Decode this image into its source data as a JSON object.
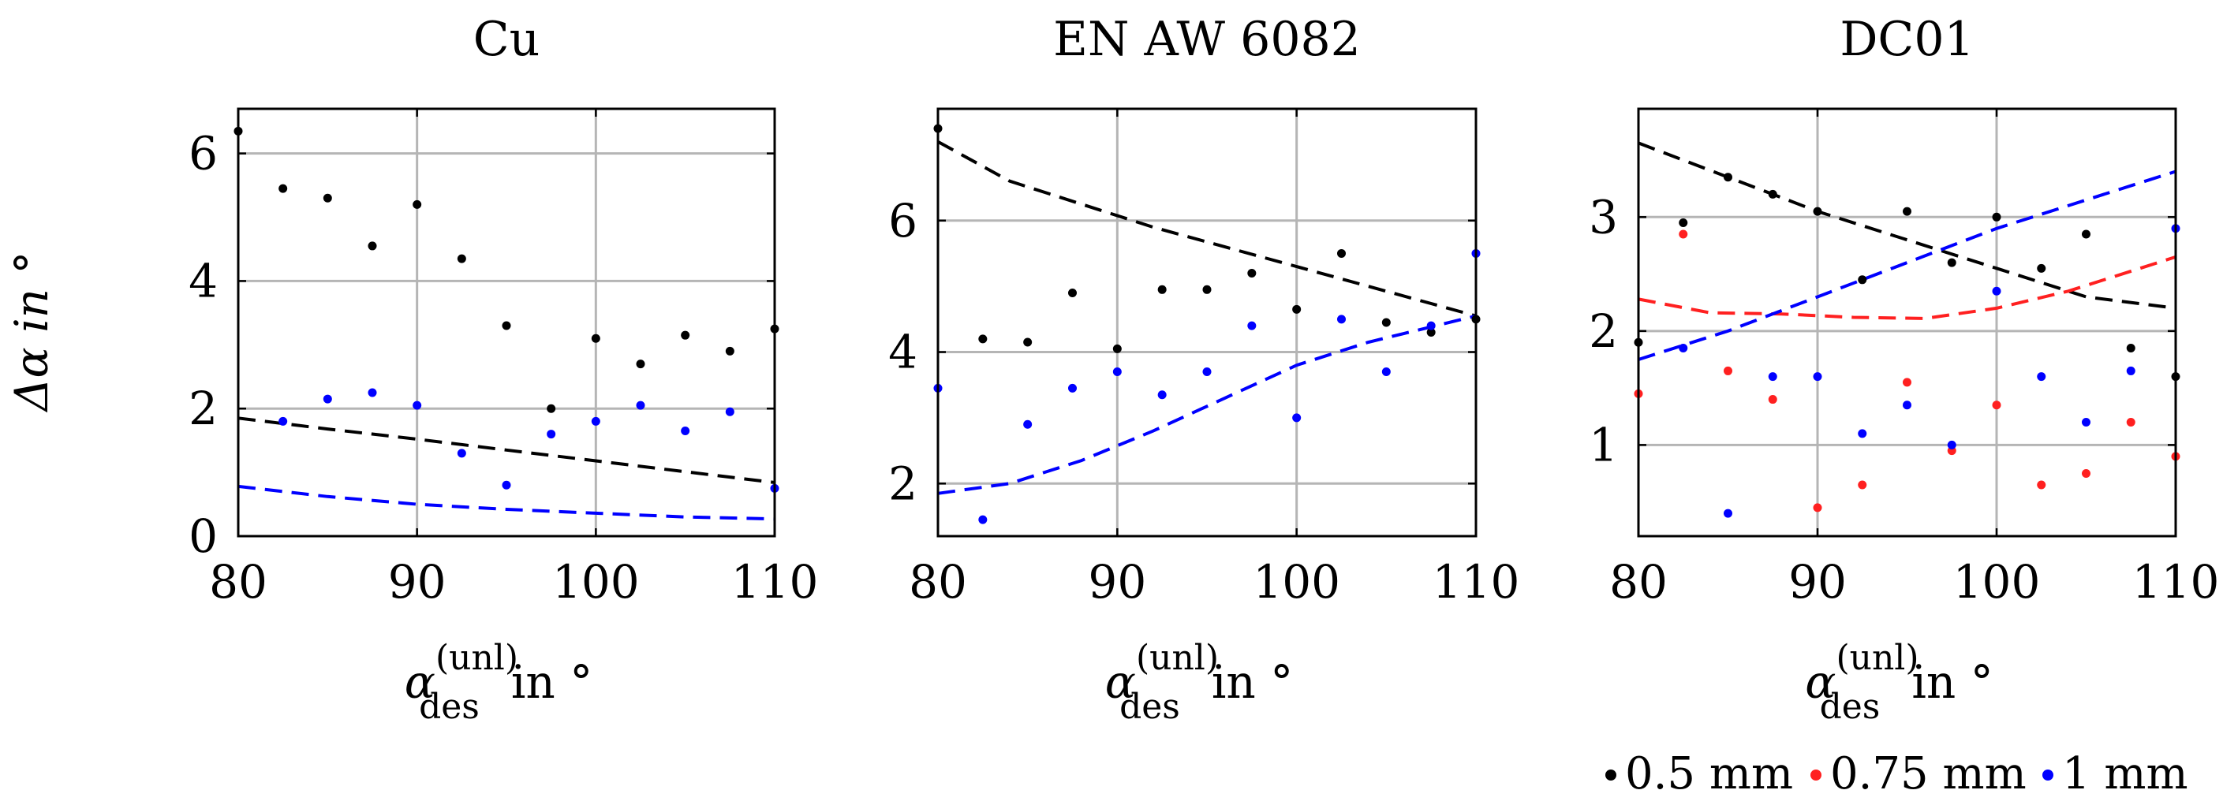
{
  "chart_data": {
    "ylabel": "Δα in °",
    "xlabel": {
      "symbol": "α",
      "superscript": "(unl)",
      "subscript": "des",
      "suffix": "in °"
    },
    "legend": [
      {
        "label": "0.5 mm",
        "color": "#000000"
      },
      {
        "label": "0.75 mm",
        "color": "#ff2020"
      },
      {
        "label": "1 mm",
        "color": "#0000ff"
      }
    ],
    "panels": [
      {
        "type": "scatter",
        "title": "Cu",
        "xlim": [
          80,
          110
        ],
        "ylim": [
          0,
          6.7
        ],
        "xticks": [
          80,
          90,
          100,
          110
        ],
        "yticks": [
          0,
          2,
          4,
          6
        ],
        "grid": true,
        "series": [
          {
            "name": "0.5 mm",
            "color": "#000000",
            "x": [
              80,
              82.5,
              85,
              87.5,
              90,
              92.5,
              95,
              97.5,
              100,
              102.5,
              105,
              107.5,
              110
            ],
            "y": [
              6.35,
              5.45,
              5.3,
              4.55,
              5.2,
              4.35,
              3.3,
              2.0,
              3.1,
              2.7,
              3.15,
              2.9,
              3.25
            ]
          },
          {
            "name": "1 mm",
            "color": "#0000ff",
            "x": [
              82.5,
              85,
              87.5,
              90,
              92.5,
              95,
              97.5,
              100,
              102.5,
              105,
              107.5,
              110
            ],
            "y": [
              1.8,
              2.15,
              2.25,
              2.05,
              1.3,
              0.8,
              1.6,
              1.8,
              2.05,
              1.65,
              1.95,
              0.75
            ]
          }
        ],
        "fits": [
          {
            "name": "0.5 mm",
            "color": "#000000",
            "x": [
              80,
              85,
              90,
              95,
              100,
              105,
              110
            ],
            "y": [
              1.85,
              1.68,
              1.52,
              1.35,
              1.18,
              1.01,
              0.84
            ]
          },
          {
            "name": "1 mm",
            "color": "#0000ff",
            "x": [
              80,
              85,
              90,
              95,
              100,
              105,
              110
            ],
            "y": [
              0.78,
              0.62,
              0.5,
              0.42,
              0.36,
              0.3,
              0.27
            ]
          }
        ]
      },
      {
        "type": "scatter",
        "title": "EN AW 6082",
        "xlim": [
          80,
          110
        ],
        "ylim": [
          1.2,
          7.7
        ],
        "xticks": [
          80,
          90,
          100,
          110
        ],
        "yticks": [
          2,
          4,
          6
        ],
        "grid": true,
        "series": [
          {
            "name": "0.5 mm",
            "color": "#000000",
            "x": [
              80,
              82.5,
              85,
              87.5,
              90,
              92.5,
              95,
              97.5,
              100,
              102.5,
              105,
              107.5,
              110
            ],
            "y": [
              7.4,
              4.2,
              4.15,
              4.9,
              4.05,
              4.95,
              4.95,
              5.2,
              4.65,
              5.5,
              4.45,
              4.3,
              4.5
            ]
          },
          {
            "name": "1 mm",
            "color": "#0000ff",
            "x": [
              80,
              82.5,
              85,
              87.5,
              90,
              92.5,
              95,
              97.5,
              100,
              102.5,
              105,
              107.5,
              110
            ],
            "y": [
              3.45,
              1.45,
              2.9,
              3.45,
              3.7,
              3.35,
              3.7,
              4.4,
              3.0,
              4.5,
              3.7,
              4.4,
              5.5
            ]
          }
        ],
        "fits": [
          {
            "name": "0.5 mm",
            "color": "#000000",
            "x": [
              80,
              84,
              88,
              92,
              96,
              100,
              104,
              110
            ],
            "y": [
              7.2,
              6.6,
              6.25,
              5.9,
              5.6,
              5.3,
              5.0,
              4.55
            ]
          },
          {
            "name": "1 mm",
            "color": "#0000ff",
            "x": [
              80,
              84,
              88,
              92,
              96,
              100,
              104,
              110
            ],
            "y": [
              1.85,
              2.0,
              2.35,
              2.8,
              3.3,
              3.8,
              4.15,
              4.55
            ]
          }
        ]
      },
      {
        "type": "scatter",
        "title": "DC01",
        "xlim": [
          80,
          110
        ],
        "ylim": [
          0.2,
          3.95
        ],
        "xticks": [
          80,
          90,
          100,
          110
        ],
        "yticks": [
          1,
          2,
          3
        ],
        "grid": true,
        "series": [
          {
            "name": "0.5 mm",
            "color": "#000000",
            "x": [
              80,
              82.5,
              85,
              87.5,
              90,
              92.5,
              95,
              97.5,
              100,
              102.5,
              105,
              107.5,
              110
            ],
            "y": [
              1.9,
              2.95,
              3.35,
              3.2,
              3.05,
              2.45,
              3.05,
              2.6,
              3.0,
              2.55,
              2.85,
              1.85,
              1.6
            ]
          },
          {
            "name": "0.75 mm",
            "color": "#ff2020",
            "x": [
              80,
              82.5,
              85,
              87.5,
              90,
              92.5,
              95,
              97.5,
              100,
              102.5,
              105,
              107.5,
              110
            ],
            "y": [
              1.45,
              2.85,
              1.65,
              1.4,
              0.45,
              0.65,
              1.55,
              0.95,
              1.35,
              0.65,
              0.75,
              1.2,
              0.9
            ]
          },
          {
            "name": "1 mm",
            "color": "#0000ff",
            "x": [
              82.5,
              85,
              87.5,
              90,
              92.5,
              95,
              97.5,
              100,
              102.5,
              105,
              107.5,
              110
            ],
            "y": [
              1.85,
              0.4,
              1.6,
              1.6,
              1.1,
              1.35,
              1.0,
              2.35,
              1.6,
              1.2,
              1.65,
              2.9
            ]
          }
        ],
        "fits": [
          {
            "name": "0.5 mm",
            "color": "#000000",
            "x": [
              80,
              85,
              90,
              95,
              100,
              105,
              110
            ],
            "y": [
              3.65,
              3.35,
              3.05,
              2.8,
              2.55,
              2.3,
              2.2
            ]
          },
          {
            "name": "0.75 mm",
            "color": "#ff2020",
            "x": [
              80,
              84,
              88,
              92,
              96,
              100,
              104,
              110
            ],
            "y": [
              2.28,
              2.16,
              2.15,
              2.12,
              2.11,
              2.2,
              2.35,
              2.65
            ]
          },
          {
            "name": "1 mm",
            "color": "#0000ff",
            "x": [
              80,
              85,
              90,
              95,
              100,
              105,
              110
            ],
            "y": [
              1.75,
              2.0,
              2.3,
              2.6,
              2.9,
              3.15,
              3.4
            ]
          }
        ]
      }
    ]
  }
}
